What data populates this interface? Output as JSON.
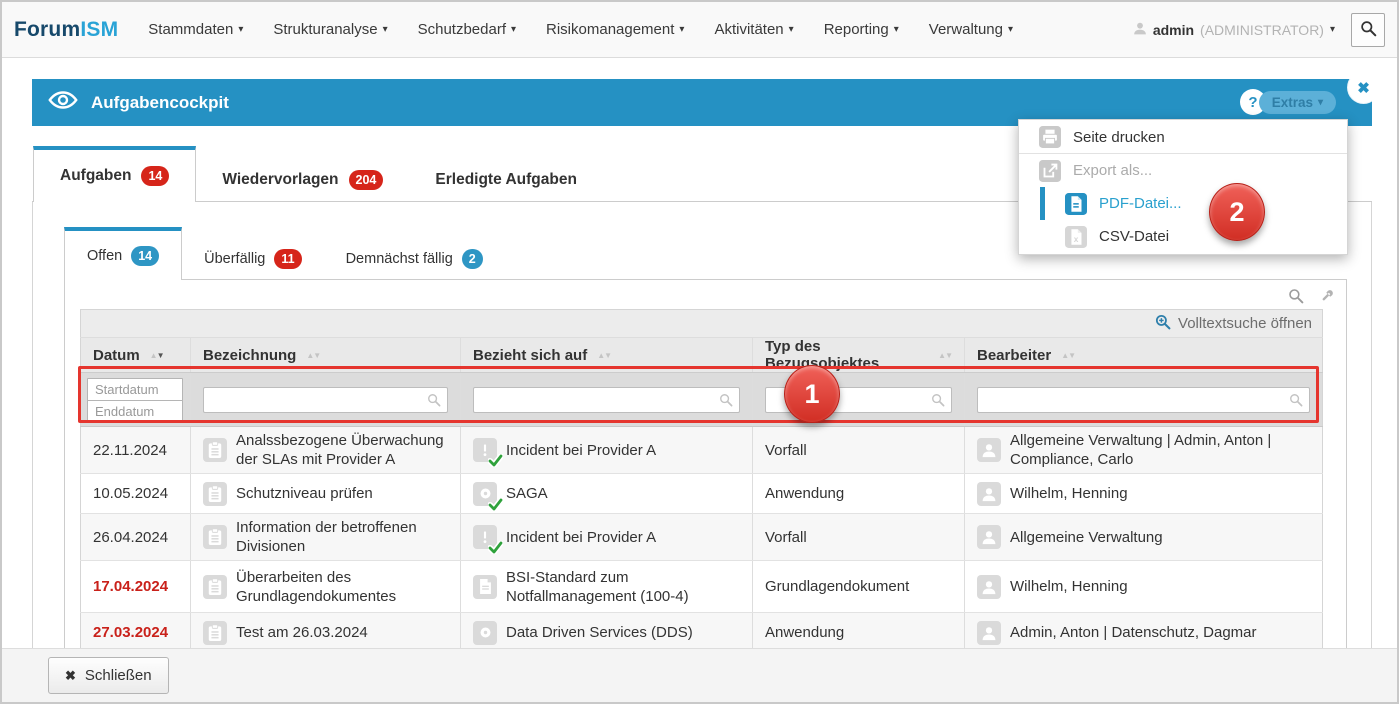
{
  "colors": {
    "accent_blue": "#2591c3",
    "badge_red": "#d6251a",
    "badge_blue": "#2e96c4",
    "annotation_red": "#e5352e",
    "link_blue": "#29a0ce",
    "logo_navy": "#17496b",
    "logo_blue": "#29a3d6",
    "overdue_red": "#c9211a"
  },
  "nav": {
    "logo_part1": "Forum",
    "logo_part2": "ISM",
    "items": [
      "Stammdaten",
      "Strukturanalyse",
      "Schutzbedarf",
      "Risikomanagement",
      "Aktivitäten",
      "Reporting",
      "Verwaltung"
    ],
    "user_name": "admin",
    "user_role": "(ADMINISTRATOR)"
  },
  "panel": {
    "title": "Aufgabencockpit",
    "help_label": "?",
    "extras_label": "Extras"
  },
  "tabs": [
    {
      "label": "Aufgaben",
      "count": "14",
      "badge": "red",
      "active": true
    },
    {
      "label": "Wiedervorlagen",
      "count": "204",
      "badge": "red",
      "active": false
    },
    {
      "label": "Erledigte Aufgaben",
      "count": "",
      "badge": "",
      "active": false
    }
  ],
  "subtabs": [
    {
      "label": "Offen",
      "count": "14",
      "badge": "blue",
      "active": true
    },
    {
      "label": "Überfällig",
      "count": "11",
      "badge": "red",
      "active": false
    },
    {
      "label": "Demnächst fällig",
      "count": "2",
      "badge": "blue",
      "active": false
    }
  ],
  "extras_menu": {
    "items": [
      {
        "label": "Seite drucken",
        "icon": "printer-icon",
        "state": "normal",
        "indent": false
      },
      {
        "label": "Export als...",
        "icon": "export-icon",
        "state": "disabled",
        "indent": false
      },
      {
        "label": "PDF-Datei...",
        "icon": "pdf-file-icon",
        "state": "highlighted",
        "indent": true
      },
      {
        "label": "CSV-Datei",
        "icon": "csv-file-icon",
        "state": "normal",
        "indent": true
      }
    ]
  },
  "content": {
    "fulltext_search_label": "Volltextsuche öffnen"
  },
  "table": {
    "columns": [
      {
        "label": "Datum",
        "sort": "desc"
      },
      {
        "label": "Bezeichnung",
        "sort": "none"
      },
      {
        "label": "Bezieht sich auf",
        "sort": "none"
      },
      {
        "label": "Typ des Bezugsobjektes",
        "sort": "none"
      },
      {
        "label": "Bearbeiter",
        "sort": "none"
      }
    ],
    "filter_placeholders": {
      "start": "Startdatum",
      "end": "Enddatum"
    },
    "rows": [
      {
        "datum": "22.11.2024",
        "overdue": false,
        "partial": false,
        "bezeichnung": "Analssbezogene Überwachung der SLAs mit Provider A",
        "bezug": "Incident bei Provider A",
        "bezug_icon": "incident-icon",
        "bezug_check": true,
        "typ": "Vorfall",
        "bearbeiter": "Allgemeine Verwaltung | Admin, Anton | Compliance, Carlo"
      },
      {
        "datum": "10.05.2024",
        "overdue": false,
        "partial": false,
        "bezeichnung": "Schutzniveau prüfen",
        "bezug": "SAGA",
        "bezug_icon": "application-icon",
        "bezug_check": true,
        "typ": "Anwendung",
        "bearbeiter": "Wilhelm, Henning"
      },
      {
        "datum": "26.04.2024",
        "overdue": false,
        "partial": false,
        "bezeichnung": "Information der betroffenen Divisionen",
        "bezug": "Incident bei Provider A",
        "bezug_icon": "incident-icon",
        "bezug_check": true,
        "typ": "Vorfall",
        "bearbeiter": "Allgemeine Verwaltung"
      },
      {
        "datum": "17.04.2024",
        "overdue": true,
        "partial": false,
        "bezeichnung": "Überarbeiten des Grundlagendokumentes",
        "bezug": "BSI-Standard zum Notfallmanagement (100-4)",
        "bezug_icon": "document-icon",
        "bezug_check": false,
        "typ": "Grundlagendokument",
        "bearbeiter": "Wilhelm, Henning"
      },
      {
        "datum": "27.03.2024",
        "overdue": true,
        "partial": false,
        "bezeichnung": "Test am 26.03.2024",
        "bezug": "Data Driven Services (DDS)",
        "bezug_icon": "application-icon",
        "bezug_check": false,
        "typ": "Anwendung",
        "bearbeiter": "Admin, Anton | Datenschutz, Dagmar"
      },
      {
        "datum": "",
        "overdue": false,
        "partial": true,
        "bezeichnung": "",
        "bezug": "",
        "bezug_icon": "application-icon",
        "bezug_check": false,
        "typ": "",
        "bearbeiter": ""
      }
    ]
  },
  "annotations": {
    "badge1": "1",
    "badge2": "2"
  },
  "footer": {
    "close_label": "Schließen"
  }
}
